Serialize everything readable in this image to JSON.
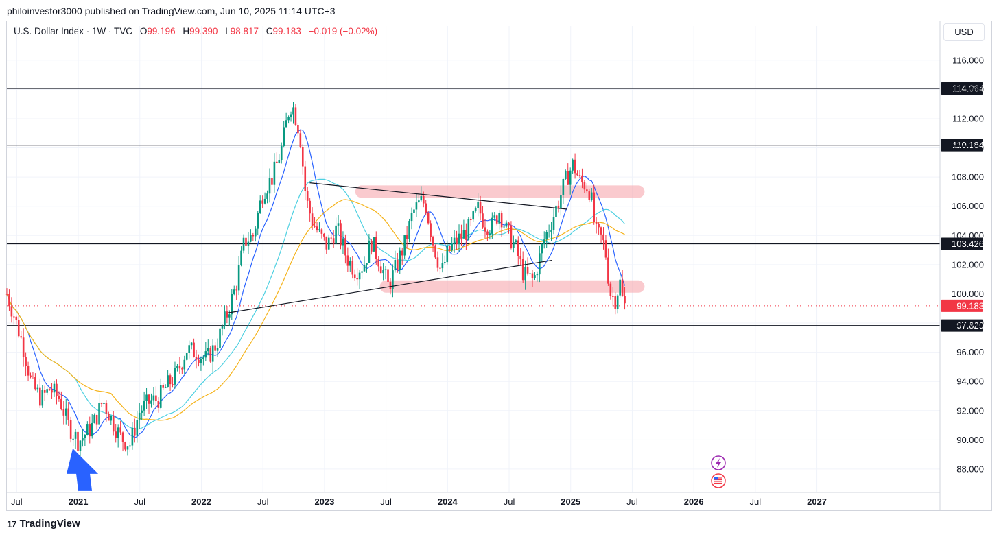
{
  "header": {
    "published_by": "philoinvestor3000 published on TradingView.com, Jun 10, 2025 11:14 UTC+3"
  },
  "legend": {
    "symbol": "U.S. Dollar Index · 1W · TVC",
    "open_label": "O",
    "open": "99.196",
    "high_label": "H",
    "high": "99.390",
    "low_label": "L",
    "low": "98.817",
    "close_label": "C",
    "close": "99.183",
    "change": "−0.019 (−0.02%)"
  },
  "currency_button": "USD",
  "brand": {
    "logo": "17",
    "name": "TradingView"
  },
  "colors": {
    "up": "#089981",
    "down": "#f23645",
    "ma_fast": "#2962ff",
    "ma_mid": "#4dd0e1",
    "ma_slow": "#f5b31b",
    "zone": "#f7a8ae",
    "price_tag": "#f23645",
    "level_tag": "#131722"
  },
  "chart_data": {
    "type": "candlestick",
    "timeframe": "1W",
    "price_axis": {
      "range": [
        86.4,
        117.4
      ],
      "ticks": [
        "116.000",
        "114.000",
        "112.000",
        "110.000",
        "108.000",
        "106.000",
        "104.000",
        "102.000",
        "100.000",
        "98.000",
        "96.000",
        "94.000",
        "92.000",
        "90.000",
        "88.000"
      ]
    },
    "time_axis": {
      "range": [
        2020.42,
        2028.0
      ],
      "labels": [
        {
          "t": 2020.5,
          "text": "Jul",
          "bold": false
        },
        {
          "t": 2021.0,
          "text": "2021",
          "bold": true
        },
        {
          "t": 2021.5,
          "text": "Jul",
          "bold": false
        },
        {
          "t": 2022.0,
          "text": "2022",
          "bold": true
        },
        {
          "t": 2022.5,
          "text": "Jul",
          "bold": false
        },
        {
          "t": 2023.0,
          "text": "2023",
          "bold": true
        },
        {
          "t": 2023.5,
          "text": "Jul",
          "bold": false
        },
        {
          "t": 2024.0,
          "text": "2024",
          "bold": true
        },
        {
          "t": 2024.5,
          "text": "Jul",
          "bold": false
        },
        {
          "t": 2025.0,
          "text": "2025",
          "bold": true
        },
        {
          "t": 2025.5,
          "text": "Jul",
          "bold": false
        },
        {
          "t": 2026.0,
          "text": "2026",
          "bold": true
        },
        {
          "t": 2026.5,
          "text": "Jul",
          "bold": false
        },
        {
          "t": 2027.0,
          "text": "2027",
          "bold": true
        }
      ]
    },
    "horizontal_levels": [
      {
        "value": 114.064,
        "label": "114.064"
      },
      {
        "value": 110.184,
        "label": "110.184"
      },
      {
        "value": 103.426,
        "label": "103.426"
      },
      {
        "value": 97.829,
        "label": "97.829"
      }
    ],
    "last_price": {
      "value": 99.183,
      "label": "99.183"
    },
    "price_path": [
      [
        2020.42,
        100.0
      ],
      [
        2020.48,
        98.5
      ],
      [
        2020.55,
        96.5
      ],
      [
        2020.62,
        93.8
      ],
      [
        2020.7,
        92.8
      ],
      [
        2020.77,
        93.5
      ],
      [
        2020.85,
        92.8
      ],
      [
        2020.92,
        91.0
      ],
      [
        2021.0,
        89.9
      ],
      [
        2021.05,
        90.3
      ],
      [
        2021.12,
        91.0
      ],
      [
        2021.2,
        92.7
      ],
      [
        2021.28,
        91.2
      ],
      [
        2021.35,
        90.1
      ],
      [
        2021.42,
        89.7
      ],
      [
        2021.5,
        92.0
      ],
      [
        2021.58,
        92.6
      ],
      [
        2021.65,
        92.8
      ],
      [
        2021.72,
        93.7
      ],
      [
        2021.8,
        94.5
      ],
      [
        2021.88,
        96.2
      ],
      [
        2021.96,
        96.0
      ],
      [
        2022.04,
        95.5
      ],
      [
        2022.12,
        96.5
      ],
      [
        2022.2,
        98.4
      ],
      [
        2022.28,
        100.5
      ],
      [
        2022.35,
        103.6
      ],
      [
        2022.42,
        104.0
      ],
      [
        2022.5,
        107.0
      ],
      [
        2022.58,
        108.0
      ],
      [
        2022.65,
        109.9
      ],
      [
        2022.72,
        113.0
      ],
      [
        2022.75,
        112.7
      ],
      [
        2022.8,
        111.0
      ],
      [
        2022.85,
        106.5
      ],
      [
        2022.9,
        105.0
      ],
      [
        2022.96,
        104.0
      ],
      [
        2023.02,
        103.3
      ],
      [
        2023.1,
        104.5
      ],
      [
        2023.18,
        102.5
      ],
      [
        2023.25,
        101.6
      ],
      [
        2023.32,
        102.0
      ],
      [
        2023.38,
        103.6
      ],
      [
        2023.45,
        102.2
      ],
      [
        2023.52,
        100.5
      ],
      [
        2023.58,
        101.8
      ],
      [
        2023.65,
        103.4
      ],
      [
        2023.72,
        105.6
      ],
      [
        2023.78,
        106.3
      ],
      [
        2023.82,
        106.2
      ],
      [
        2023.88,
        103.6
      ],
      [
        2023.95,
        101.4
      ],
      [
        2024.0,
        102.8
      ],
      [
        2024.05,
        103.4
      ],
      [
        2024.12,
        104.0
      ],
      [
        2024.18,
        104.5
      ],
      [
        2024.25,
        105.9
      ],
      [
        2024.3,
        104.8
      ],
      [
        2024.36,
        104.6
      ],
      [
        2024.42,
        105.7
      ],
      [
        2024.48,
        104.3
      ],
      [
        2024.55,
        103.2
      ],
      [
        2024.62,
        101.3
      ],
      [
        2024.7,
        100.9
      ],
      [
        2024.78,
        103.6
      ],
      [
        2024.85,
        105.1
      ],
      [
        2024.92,
        106.8
      ],
      [
        2024.97,
        108.0
      ],
      [
        2025.02,
        108.9
      ],
      [
        2025.08,
        107.6
      ],
      [
        2025.12,
        107.5
      ],
      [
        2025.16,
        107.0
      ],
      [
        2025.2,
        104.2
      ],
      [
        2025.25,
        103.8
      ],
      [
        2025.28,
        103.1
      ],
      [
        2025.32,
        100.1
      ],
      [
        2025.36,
        99.6
      ],
      [
        2025.4,
        100.8
      ],
      [
        2025.43,
        99.1
      ],
      [
        2025.44,
        99.18
      ]
    ],
    "indicators": [
      {
        "type": "moving_average",
        "color": "#2962ff",
        "period_desc": "fast"
      },
      {
        "type": "moving_average",
        "color": "#4dd0e1",
        "period_desc": "medium"
      },
      {
        "type": "moving_average",
        "color": "#f5b31b",
        "period_desc": "slow"
      }
    ],
    "drawings": {
      "trend_lines": [
        {
          "from": [
            2022.22,
            98.7
          ],
          "to": [
            2024.85,
            102.3
          ]
        },
        {
          "from": [
            2022.88,
            107.6
          ],
          "to": [
            2024.97,
            105.8
          ]
        }
      ],
      "zones": [
        {
          "from": 2023.3,
          "to": 2025.55,
          "value": 107.0
        },
        {
          "from": 2023.5,
          "to": 2025.55,
          "value": 100.5
        }
      ],
      "marker_arrow": {
        "t": 2021.0,
        "value": 88.0
      }
    },
    "event_icons": [
      "lightning-icon",
      "us-flag-icon"
    ]
  }
}
